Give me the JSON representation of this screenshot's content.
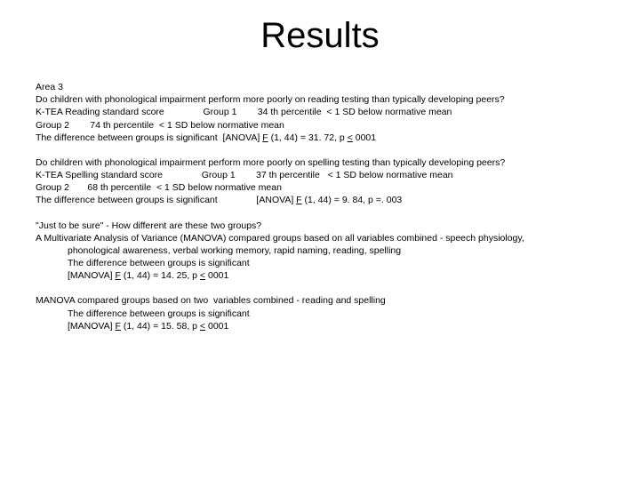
{
  "title": "Results",
  "b1": {
    "l1": "Area 3",
    "l2": "Do children with phonological impairment perform more poorly on reading testing than typically developing peers?",
    "l3": "K-TEA Reading standard score               Group 1        34 th percentile  < 1 SD below normative mean",
    "l4": "Group 2        74 th percentile  < 1 SD below normative mean",
    "l5a": "The difference between groups is significant  [ANOVA] ",
    "l5b": "F",
    "l5c": " (1, 44) = 31. 72, p ",
    "l5d": "<",
    "l5e": " 0001"
  },
  "b2": {
    "l1": "Do children with phonological impairment perform more poorly on spelling testing than typically developing peers?",
    "l2": "K-TEA Spelling standard score               Group 1        37 th percentile   < 1 SD below normative mean",
    "l3": "Group 2       68 th percentile  < 1 SD below normative mean",
    "l4a": "The difference between groups is significant               [ANOVA] ",
    "l4b": "F",
    "l4c": " (1, 44) = 9. 84, p =. 003"
  },
  "b3": {
    "l1": "\"Just to be sure\" - How different are these two groups?",
    "l2": "A Multivariate Analysis of Variance (MANOVA) compared groups based on all variables combined - speech physiology,",
    "l2b": "phonological awareness, verbal working memory, rapid naming, reading, spelling",
    "l3": "The difference between groups is significant",
    "l4a": "[MANOVA] ",
    "l4b": "F",
    "l4c": " (1, 44) = 14. 25, p ",
    "l4d": "<",
    "l4e": " 0001"
  },
  "b4": {
    "l1": "MANOVA compared groups based on two  variables combined - reading and spelling",
    "l2": "The difference between groups is significant",
    "l3a": "[MANOVA] ",
    "l3b": "F",
    "l3c": " (1, 44) = 15. 58, p ",
    "l3d": "<",
    "l3e": " 0001"
  }
}
